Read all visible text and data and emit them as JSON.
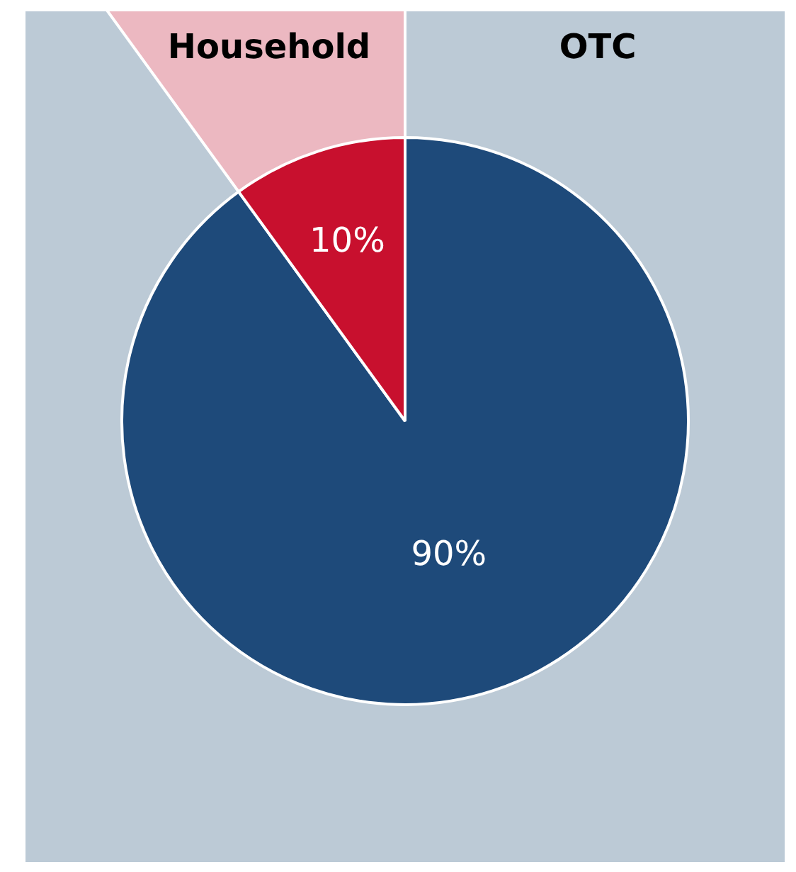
{
  "chart_data": {
    "type": "pie",
    "categories": [
      "OTC",
      "Household"
    ],
    "values": [
      90,
      10
    ],
    "colors": [
      "#1e4a7a",
      "#c8102e"
    ],
    "value_labels": [
      "90%",
      "10%"
    ],
    "legend": false
  }
}
